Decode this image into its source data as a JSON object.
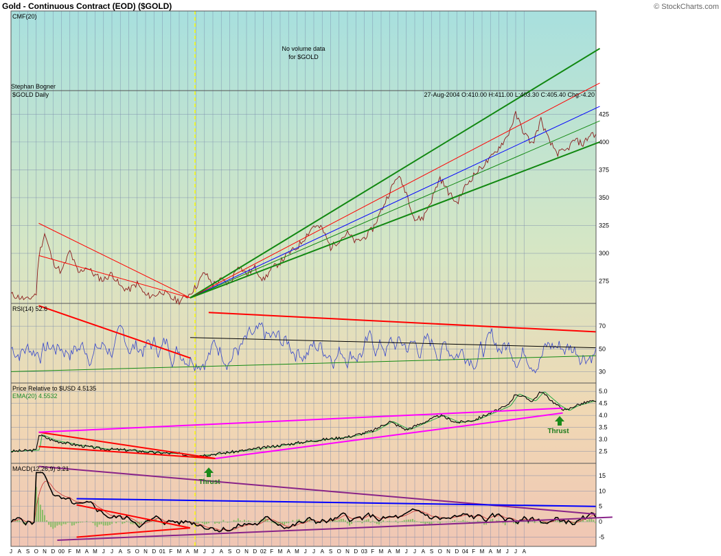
{
  "header": {
    "title": "Gold - Continuous Contract (EOD) ($GOLD)",
    "credit": "© StockCharts.com"
  },
  "colors": {
    "price": "#8b1a1a",
    "rsi": "#3344cc",
    "trend_red": "#ff0000",
    "trend_green": "#118811",
    "trend_blue": "#0000ff",
    "magenta": "#ff00ff",
    "purple": "#882288",
    "vline": "#ffff00",
    "ema": "#22aa44"
  },
  "chart_data": [
    {
      "panel": "cmf",
      "type": "line",
      "label": "CMF(20)",
      "note_line1": "No volume data",
      "note_line2": "for $GOLD"
    },
    {
      "panel": "price",
      "type": "line",
      "annotation": "Stephan Bogner",
      "label": "$GOLD Daily",
      "quote": "27-Aug-2004 O:410.00 H:411.00 L:403.30 C:405.40 Chg:-4.20",
      "ylim": [
        255,
        440
      ],
      "ytick_values": [
        275,
        300,
        325,
        350,
        375,
        400,
        425
      ],
      "ytick_labels": [
        "275",
        "300",
        "325",
        "350",
        "375",
        "400",
        "425"
      ],
      "keypoints": [
        [
          0,
          263
        ],
        [
          2,
          258
        ],
        [
          3,
          264
        ],
        [
          3.3,
          298
        ],
        [
          4,
          318
        ],
        [
          5,
          292
        ],
        [
          6,
          283
        ],
        [
          7,
          302
        ],
        [
          8,
          282
        ],
        [
          9,
          288
        ],
        [
          10,
          280
        ],
        [
          11,
          276
        ],
        [
          12,
          282
        ],
        [
          13,
          270
        ],
        [
          14,
          267
        ],
        [
          15,
          273
        ],
        [
          16,
          262
        ],
        [
          17,
          262
        ],
        [
          18,
          266
        ],
        [
          19,
          260
        ],
        [
          20,
          257
        ],
        [
          21,
          262
        ],
        [
          22,
          270
        ],
        [
          23,
          283
        ],
        [
          24,
          272
        ],
        [
          25,
          276
        ],
        [
          26,
          272
        ],
        [
          27,
          290
        ],
        [
          28,
          281
        ],
        [
          29,
          287
        ],
        [
          30,
          276
        ],
        [
          31,
          286
        ],
        [
          32,
          292
        ],
        [
          33,
          300
        ],
        [
          34,
          305
        ],
        [
          35,
          315
        ],
        [
          36,
          325
        ],
        [
          37,
          322
        ],
        [
          38,
          305
        ],
        [
          39,
          312
        ],
        [
          40,
          318
        ],
        [
          41,
          310
        ],
        [
          42,
          314
        ],
        [
          43,
          322
        ],
        [
          44,
          338
        ],
        [
          45,
          355
        ],
        [
          46,
          370
        ],
        [
          47,
          355
        ],
        [
          48,
          330
        ],
        [
          49,
          332
        ],
        [
          50,
          348
        ],
        [
          51,
          368
        ],
        [
          52,
          355
        ],
        [
          53,
          345
        ],
        [
          54,
          360
        ],
        [
          55,
          370
        ],
        [
          56,
          378
        ],
        [
          57,
          385
        ],
        [
          58,
          395
        ],
        [
          59,
          405
        ],
        [
          60,
          425
        ],
        [
          61,
          408
        ],
        [
          62,
          398
        ],
        [
          63,
          420
        ],
        [
          64,
          400
        ],
        [
          65,
          390
        ],
        [
          66,
          392
        ],
        [
          67,
          402
        ],
        [
          68,
          398
        ],
        [
          69,
          408
        ],
        [
          69.8,
          405
        ]
      ],
      "trendlines": [
        {
          "color": "red",
          "points": [
            [
              3.3,
              327
            ],
            [
              21.3,
              260
            ]
          ]
        },
        {
          "color": "red",
          "points": [
            [
              3.3,
              298
            ],
            [
              21.3,
              260
            ]
          ]
        },
        {
          "color": "green",
          "points": [
            [
              21.3,
              260
            ],
            [
              70,
              484
            ]
          ]
        },
        {
          "color": "red",
          "points": [
            [
              21.3,
              260
            ],
            [
              70,
              453
            ]
          ]
        },
        {
          "color": "blue",
          "points": [
            [
              21.3,
              260
            ],
            [
              70,
              432
            ]
          ]
        },
        {
          "color": "green",
          "points": [
            [
              21.3,
              260
            ],
            [
              70,
              419
            ]
          ]
        },
        {
          "color": "green",
          "points": [
            [
              21.3,
              260
            ],
            [
              70,
              400
            ]
          ]
        }
      ]
    },
    {
      "panel": "rsi",
      "type": "line",
      "label": "RSI(14)",
      "value": "52.6",
      "ylim": [
        20,
        90
      ],
      "ytick_values": [
        30,
        50,
        70
      ],
      "ytick_labels": [
        "30",
        "50",
        "70"
      ],
      "trendlines": [
        {
          "color": "red",
          "points": [
            [
              3.3,
              88
            ],
            [
              21.3,
              42
            ]
          ]
        },
        {
          "color": "red",
          "points": [
            [
              23.5,
              82
            ],
            [
              69.5,
              65
            ]
          ]
        },
        {
          "color": "green",
          "points": [
            [
              0,
              30
            ],
            [
              69.5,
              44
            ]
          ]
        },
        {
          "color": "black",
          "points": [
            [
              21.3,
              60
            ],
            [
              69.5,
              51
            ]
          ]
        }
      ]
    },
    {
      "panel": "price_relative",
      "type": "line",
      "label": "Price Relative to $USD",
      "value": "4.5135",
      "ema_label": "EMA(20)",
      "ema_value": "4.5532",
      "ylim": [
        2.0,
        5.35
      ],
      "ytick_values": [
        2.5,
        3.0,
        3.5,
        4.0,
        4.5,
        5.0
      ],
      "ytick_labels": [
        "2.5",
        "3.0",
        "3.5",
        "4.0",
        "4.5",
        "5.0"
      ],
      "annotations": [
        "Thrust",
        "Thrust"
      ],
      "keypoints": [
        [
          0,
          2.5
        ],
        [
          3,
          2.55
        ],
        [
          3.3,
          3.2
        ],
        [
          5,
          2.95
        ],
        [
          8,
          2.75
        ],
        [
          11,
          2.6
        ],
        [
          14,
          2.55
        ],
        [
          17,
          2.45
        ],
        [
          20,
          2.4
        ],
        [
          21.3,
          2.3
        ],
        [
          24,
          2.38
        ],
        [
          28,
          2.55
        ],
        [
          32,
          2.75
        ],
        [
          36,
          2.95
        ],
        [
          40,
          3.1
        ],
        [
          43,
          3.35
        ],
        [
          45,
          3.75
        ],
        [
          47,
          3.4
        ],
        [
          49,
          3.7
        ],
        [
          51,
          4.0
        ],
        [
          53,
          3.7
        ],
        [
          55,
          3.8
        ],
        [
          57,
          4.1
        ],
        [
          59,
          4.4
        ],
        [
          60,
          4.9
        ],
        [
          62,
          4.6
        ],
        [
          63,
          5.0
        ],
        [
          64,
          4.7
        ],
        [
          65,
          4.4
        ],
        [
          66,
          4.2
        ],
        [
          67,
          4.4
        ],
        [
          68,
          4.5
        ],
        [
          69,
          4.6
        ],
        [
          69.8,
          4.5
        ]
      ],
      "trendlines": [
        {
          "color": "red",
          "points": [
            [
              3.3,
              3.3
            ],
            [
              24.3,
              2.2
            ]
          ]
        },
        {
          "color": "red",
          "points": [
            [
              3.3,
              2.7
            ],
            [
              24.3,
              2.2
            ]
          ]
        },
        {
          "color": "magenta",
          "points": [
            [
              3.3,
              3.3
            ],
            [
              65.6,
              4.3
            ]
          ]
        },
        {
          "color": "magenta",
          "points": [
            [
              24.3,
              2.2
            ],
            [
              65.6,
              4.1
            ]
          ]
        }
      ]
    },
    {
      "panel": "macd",
      "type": "line",
      "label": "MACD(12,26,9)",
      "value": "3.21",
      "ylim": [
        -8,
        19
      ],
      "ytick_values": [
        -5,
        0,
        5,
        10,
        15
      ],
      "ytick_labels": [
        "-5",
        "0",
        "5",
        "10",
        "15"
      ],
      "trendlines": [
        {
          "color": "purple",
          "points": [
            [
              3.3,
              18
            ],
            [
              69.5,
              2.5
            ]
          ]
        },
        {
          "color": "purple",
          "points": [
            [
              5.5,
              -6
            ],
            [
              71.5,
              1.5
            ]
          ]
        },
        {
          "color": "blue",
          "points": [
            [
              7.8,
              7.5
            ],
            [
              69.5,
              5
            ]
          ]
        },
        {
          "color": "red",
          "points": [
            [
              7.8,
              5.5
            ],
            [
              21.3,
              -2
            ]
          ]
        },
        {
          "color": "red",
          "points": [
            [
              7.8,
              -5
            ],
            [
              21.3,
              -2
            ]
          ]
        }
      ]
    }
  ],
  "x_axis": {
    "labels": [
      "J",
      "A",
      "S",
      "O",
      "N",
      "D",
      "00",
      "F",
      "M",
      "A",
      "M",
      "J",
      "J",
      "A",
      "S",
      "O",
      "N",
      "D",
      "01",
      "F",
      "M",
      "A",
      "M",
      "J",
      "J",
      "A",
      "S",
      "O",
      "N",
      "D",
      "02",
      "F",
      "M",
      "A",
      "M",
      "J",
      "J",
      "A",
      "S",
      "O",
      "N",
      "D",
      "03",
      "F",
      "M",
      "A",
      "M",
      "J",
      "J",
      "A",
      "S",
      "O",
      "N",
      "D",
      "04",
      "F",
      "M",
      "A",
      "M",
      "J",
      "J",
      "A"
    ]
  }
}
